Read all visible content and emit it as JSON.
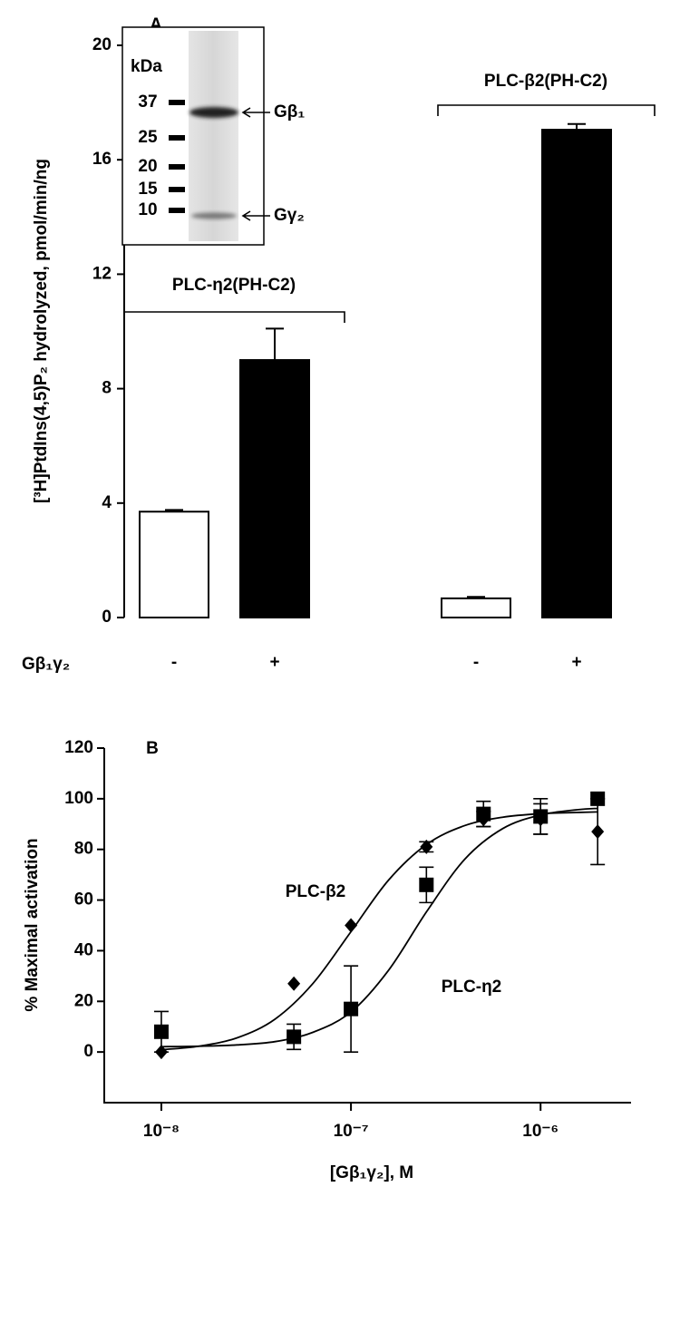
{
  "chart_data": [
    {
      "type": "bar",
      "panel_label": "A",
      "y_label": "[³H]PtdIns(4,5)P₂ hydrolyzed, pmol/min/ng",
      "x_row_label": "Gβ₁γ₂",
      "categories": [
        "-",
        "+",
        "-",
        "+"
      ],
      "values": [
        3.7,
        9.0,
        0.67,
        17.05
      ],
      "errors": [
        0.06,
        1.1,
        0.05,
        0.2
      ],
      "bar_colors": [
        "#ffffff",
        "#000000",
        "#ffffff",
        "#000000"
      ],
      "groups": [
        "PLC-η2(PH-C2)",
        "PLC-β2(PH-C2)"
      ],
      "ylim": [
        0,
        20
      ],
      "yticks": [
        0,
        4,
        8,
        12,
        16,
        20
      ],
      "inset": {
        "unit_label": "kDa",
        "markers": [
          "37",
          "25",
          "20",
          "15",
          "10"
        ],
        "bands": [
          "Gβ₁",
          "Gγ₂"
        ]
      }
    },
    {
      "type": "scatter",
      "panel_label": "B",
      "y_label": "% Maximal activation",
      "x_label": "[Gβ₁γ₂], M",
      "xscale": "log",
      "xlim": [
        5e-09,
        3e-06
      ],
      "ylim": [
        -20,
        120
      ],
      "xticks": [
        {
          "value": 1e-08,
          "label": "10⁻⁸"
        },
        {
          "value": 1e-07,
          "label": "10⁻⁷"
        },
        {
          "value": 1e-06,
          "label": "10⁻⁶"
        }
      ],
      "yticks": [
        0,
        20,
        40,
        60,
        80,
        100,
        120
      ],
      "series": [
        {
          "name": "PLC-β2",
          "marker": "diamond",
          "color": "#000000",
          "x": [
            1e-08,
            5e-08,
            1e-07,
            2.5e-07,
            5e-07,
            1e-06,
            2e-06
          ],
          "values": [
            0,
            27,
            50,
            81,
            92,
            92,
            87
          ],
          "errors": [
            null,
            null,
            null,
            2,
            3,
            6,
            13
          ],
          "fit_x": [
            1e-08,
            1.58e-08,
            2.51e-08,
            3.98e-08,
            6.31e-08,
            1e-07,
            1.58e-07,
            2.51e-07,
            3.98e-07,
            6.31e-07,
            1e-06,
            1.58e-06,
            2e-06
          ],
          "fit_values": [
            0.9,
            2.3,
            5.6,
            13.0,
            27.1,
            47.5,
            67.9,
            82.0,
            89.4,
            92.7,
            94.1,
            94.6,
            94.8
          ]
        },
        {
          "name": "PLC-η2",
          "marker": "square",
          "color": "#000000",
          "x": [
            1e-08,
            5e-08,
            1e-07,
            2.5e-07,
            5e-07,
            1e-06,
            2e-06
          ],
          "values": [
            8,
            6,
            17,
            66,
            94,
            93,
            100
          ],
          "errors": [
            8,
            5,
            17,
            7,
            5,
            7,
            null
          ],
          "fit_x": [
            1e-08,
            1.58e-08,
            2.51e-08,
            3.98e-08,
            6.31e-08,
            1e-07,
            1.58e-07,
            2.51e-07,
            3.98e-07,
            6.31e-07,
            1e-06,
            1.58e-06,
            2e-06
          ],
          "fit_values": [
            2.1,
            2.3,
            2.8,
            4.1,
            7.8,
            15.8,
            32.3,
            55.5,
            76.1,
            88.2,
            93.6,
            95.7,
            96.2
          ]
        }
      ]
    }
  ]
}
